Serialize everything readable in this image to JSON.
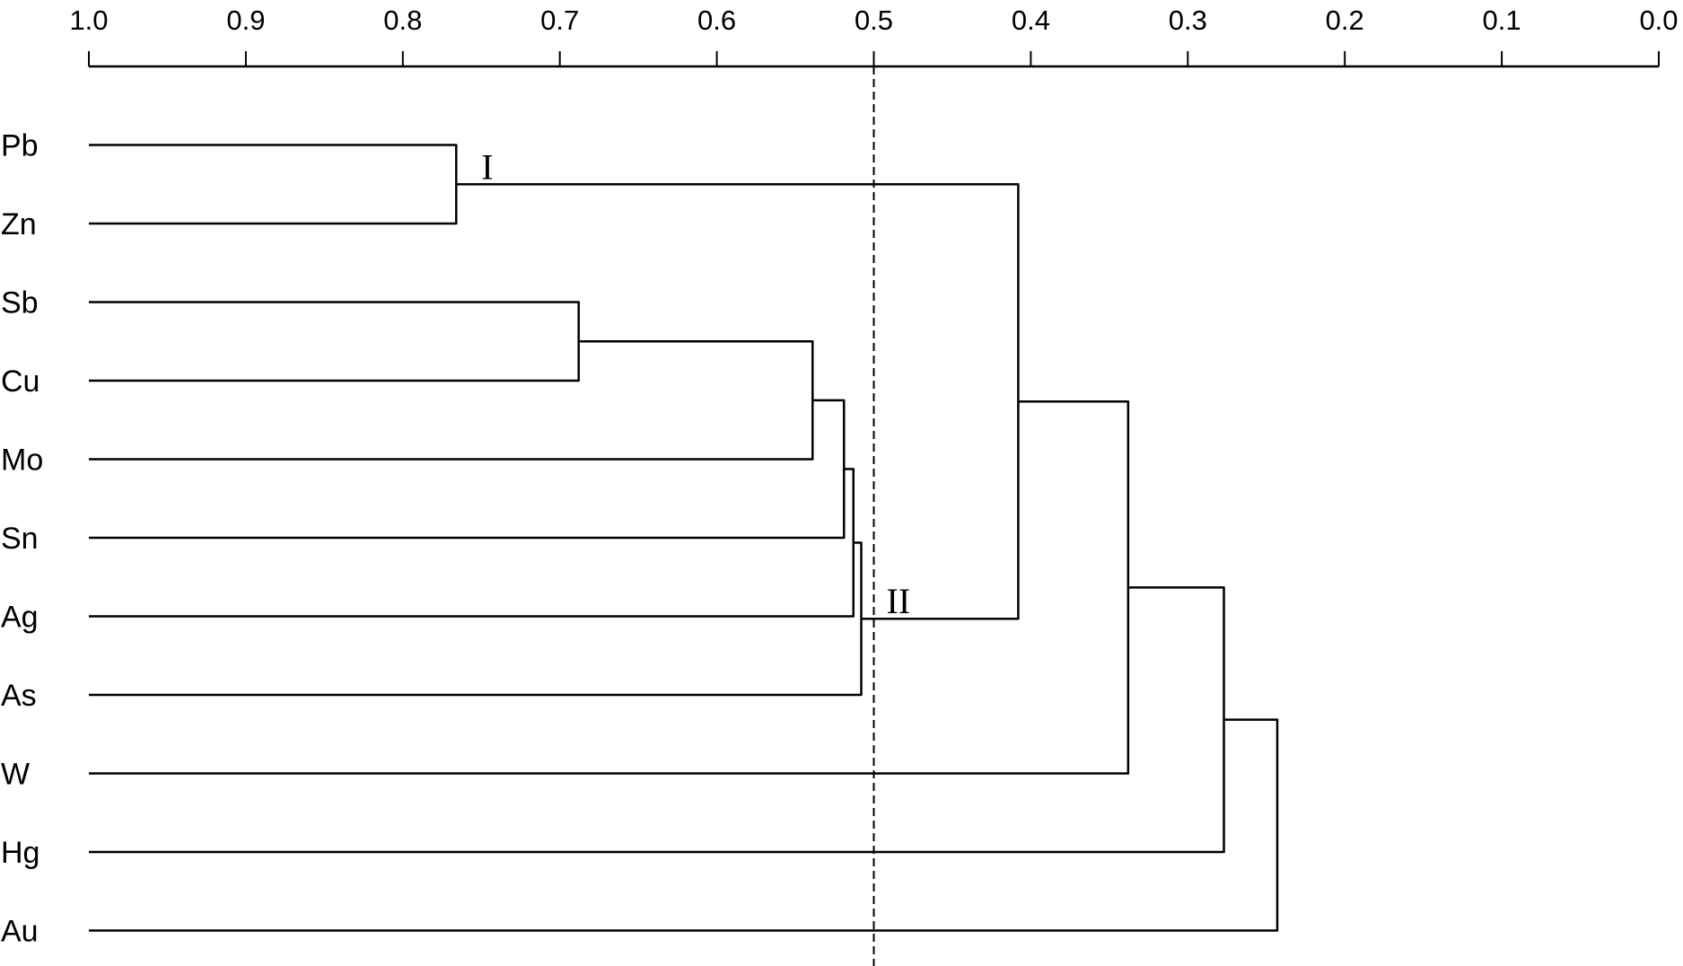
{
  "chart_data": {
    "type": "dendrogram",
    "title": "",
    "xlim": [
      1.0,
      0.0
    ],
    "x_ticks": [
      "1.0",
      "0.9",
      "0.8",
      "0.7",
      "0.6",
      "0.5",
      "0.4",
      "0.3",
      "0.2",
      "0.1",
      "0.0"
    ],
    "leaves": [
      "Pb",
      "Zn",
      "Sb",
      "Cu",
      "Mo",
      "Sn",
      "Ag",
      "As",
      "W",
      "Hg",
      "Au"
    ],
    "merges": [
      {
        "id": "m1",
        "children": [
          "Pb",
          "Zn"
        ],
        "value": 0.766
      },
      {
        "id": "m2",
        "children": [
          "Sb",
          "Cu"
        ],
        "value": 0.688
      },
      {
        "id": "m3",
        "children": [
          "m2",
          "Mo"
        ],
        "value": 0.539
      },
      {
        "id": "m4",
        "children": [
          "m3",
          "Sn"
        ],
        "value": 0.519
      },
      {
        "id": "m5",
        "children": [
          "m4",
          "Ag"
        ],
        "value": 0.513
      },
      {
        "id": "m6",
        "children": [
          "m5",
          "As"
        ],
        "value": 0.508
      },
      {
        "id": "m7",
        "children": [
          "m1",
          "m6"
        ],
        "value": 0.408
      },
      {
        "id": "m8",
        "children": [
          "m7",
          "W"
        ],
        "value": 0.338
      },
      {
        "id": "m9",
        "children": [
          "m8",
          "Hg"
        ],
        "value": 0.277
      },
      {
        "id": "m10",
        "children": [
          "m9",
          "Au"
        ],
        "value": 0.243
      }
    ],
    "threshold": 0.5,
    "annotations": [
      {
        "text": "I",
        "group": "m1"
      },
      {
        "text": "II",
        "group": "m6"
      }
    ]
  }
}
